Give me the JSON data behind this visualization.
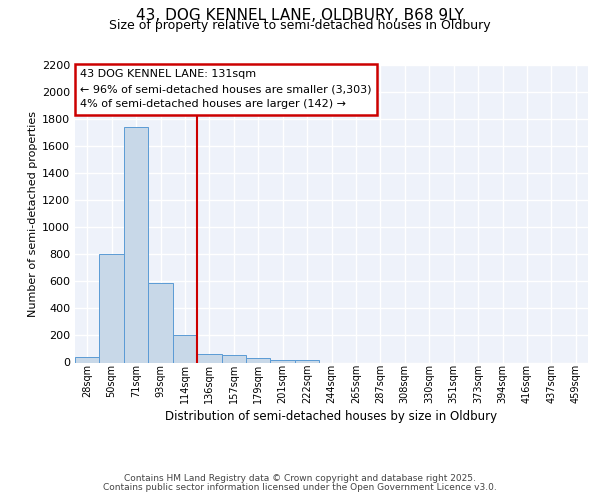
{
  "title": "43, DOG KENNEL LANE, OLDBURY, B68 9LY",
  "subtitle": "Size of property relative to semi-detached houses in Oldbury",
  "xlabel": "Distribution of semi-detached houses by size in Oldbury",
  "ylabel": "Number of semi-detached properties",
  "bar_labels": [
    "28sqm",
    "50sqm",
    "71sqm",
    "93sqm",
    "114sqm",
    "136sqm",
    "157sqm",
    "179sqm",
    "201sqm",
    "222sqm",
    "244sqm",
    "265sqm",
    "287sqm",
    "308sqm",
    "330sqm",
    "351sqm",
    "373sqm",
    "394sqm",
    "416sqm",
    "437sqm",
    "459sqm"
  ],
  "bar_values": [
    40,
    800,
    1740,
    590,
    205,
    65,
    55,
    35,
    18,
    18,
    0,
    0,
    0,
    0,
    0,
    0,
    0,
    0,
    0,
    0,
    0
  ],
  "property_line_x": 4.5,
  "annotation_title": "43 DOG KENNEL LANE: 131sqm",
  "annotation_line1": "← 96% of semi-detached houses are smaller (3,303)",
  "annotation_line2": "4% of semi-detached houses are larger (142) →",
  "bar_color": "#c8d8e8",
  "bar_edge_color": "#5b9bd5",
  "line_color": "#cc0000",
  "annotation_box_color": "#cc0000",
  "ylim": [
    0,
    2200
  ],
  "yticks": [
    0,
    200,
    400,
    600,
    800,
    1000,
    1200,
    1400,
    1600,
    1800,
    2000,
    2200
  ],
  "background_color": "#eef2fa",
  "grid_color": "#ffffff",
  "footer1": "Contains HM Land Registry data © Crown copyright and database right 2025.",
  "footer2": "Contains public sector information licensed under the Open Government Licence v3.0."
}
